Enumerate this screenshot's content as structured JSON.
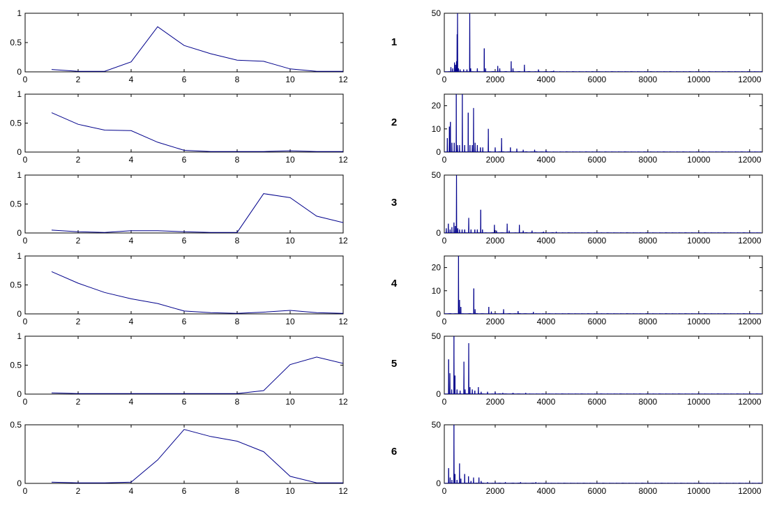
{
  "colors": {
    "line": "#00008b",
    "axis": "#000000",
    "background": "#ffffff"
  },
  "row_labels": [
    "1",
    "2",
    "3",
    "4",
    "5",
    "6"
  ],
  "chart_data": [
    {
      "type": "line",
      "row": "1",
      "xlim": [
        0,
        12
      ],
      "ylim": [
        0,
        1
      ],
      "xticks": [
        "0",
        "2",
        "4",
        "6",
        "8",
        "10",
        "12"
      ],
      "yticks": [
        "0",
        "0.5",
        "1"
      ],
      "x": [
        1,
        2,
        3,
        4,
        5,
        6,
        7,
        8,
        9,
        10,
        11,
        12
      ],
      "values": [
        0.04,
        0.01,
        0.01,
        0.17,
        0.77,
        0.45,
        0.31,
        0.2,
        0.18,
        0.05,
        0.01,
        0.01
      ]
    },
    {
      "type": "line",
      "row": "1",
      "xlim": [
        0,
        12500
      ],
      "ylim": [
        0,
        50
      ],
      "xticks": [
        "0",
        "2000",
        "4000",
        "6000",
        "8000",
        "10000",
        "12000"
      ],
      "yticks": [
        "0",
        "50"
      ],
      "peaks": [
        [
          260,
          4
        ],
        [
          330,
          3
        ],
        [
          400,
          8
        ],
        [
          440,
          6
        ],
        [
          480,
          9
        ],
        [
          505,
          32
        ],
        [
          520,
          50
        ],
        [
          560,
          3
        ],
        [
          620,
          2
        ],
        [
          760,
          2
        ],
        [
          890,
          2
        ],
        [
          1000,
          50
        ],
        [
          1040,
          3
        ],
        [
          1300,
          3
        ],
        [
          1570,
          20
        ],
        [
          1620,
          3
        ],
        [
          2100,
          5
        ],
        [
          2180,
          3
        ],
        [
          2630,
          9
        ],
        [
          2700,
          3
        ],
        [
          3150,
          6
        ],
        [
          3700,
          2
        ],
        [
          4300,
          1
        ]
      ]
    },
    {
      "type": "line",
      "row": "2",
      "xlim": [
        0,
        12
      ],
      "ylim": [
        0,
        1
      ],
      "xticks": [
        "0",
        "2",
        "4",
        "6",
        "8",
        "10",
        "12"
      ],
      "yticks": [
        "0",
        "0.5",
        "1"
      ],
      "x": [
        1,
        2,
        3,
        4,
        5,
        6,
        7,
        8,
        9,
        10,
        11,
        12
      ],
      "values": [
        0.68,
        0.48,
        0.38,
        0.37,
        0.17,
        0.03,
        0.01,
        0.01,
        0.01,
        0.02,
        0.01,
        0.01
      ]
    },
    {
      "type": "line",
      "row": "2",
      "xlim": [
        0,
        12500
      ],
      "ylim": [
        0,
        25
      ],
      "xticks": [
        "0",
        "2000",
        "4000",
        "6000",
        "8000",
        "10000",
        "12000"
      ],
      "yticks": [
        "0",
        "10",
        "20"
      ],
      "peaks": [
        [
          120,
          6
        ],
        [
          200,
          11
        ],
        [
          240,
          13
        ],
        [
          300,
          4
        ],
        [
          390,
          4
        ],
        [
          470,
          25
        ],
        [
          520,
          3
        ],
        [
          600,
          3
        ],
        [
          710,
          25
        ],
        [
          800,
          3
        ],
        [
          940,
          17
        ],
        [
          1010,
          3
        ],
        [
          1100,
          3
        ],
        [
          1150,
          19
        ],
        [
          1210,
          4
        ],
        [
          1300,
          3
        ],
        [
          1420,
          2
        ],
        [
          1510,
          2
        ],
        [
          1730,
          10
        ],
        [
          2000,
          2
        ],
        [
          2250,
          6
        ],
        [
          2600,
          2
        ],
        [
          2850,
          1.5
        ],
        [
          3100,
          1
        ],
        [
          3550,
          1
        ],
        [
          4000,
          0.8
        ]
      ]
    },
    {
      "type": "line",
      "row": "3",
      "xlim": [
        0,
        12
      ],
      "ylim": [
        0,
        1
      ],
      "xticks": [
        "0",
        "2",
        "4",
        "6",
        "8",
        "10",
        "12"
      ],
      "yticks": [
        "0",
        "0.5",
        "1"
      ],
      "x": [
        1,
        2,
        3,
        4,
        5,
        6,
        7,
        8,
        9,
        10,
        11,
        12
      ],
      "values": [
        0.05,
        0.02,
        0.01,
        0.04,
        0.04,
        0.02,
        0.01,
        0.01,
        0.68,
        0.61,
        0.29,
        0.18
      ]
    },
    {
      "type": "line",
      "row": "3",
      "xlim": [
        0,
        12500
      ],
      "ylim": [
        0,
        50
      ],
      "xticks": [
        "0",
        "2000",
        "4000",
        "6000",
        "8000",
        "10000",
        "12000"
      ],
      "yticks": [
        "0",
        "50"
      ],
      "peaks": [
        [
          80,
          4
        ],
        [
          160,
          8
        ],
        [
          230,
          3
        ],
        [
          300,
          5
        ],
        [
          380,
          9
        ],
        [
          430,
          6
        ],
        [
          480,
          50
        ],
        [
          530,
          4
        ],
        [
          600,
          3
        ],
        [
          700,
          3
        ],
        [
          800,
          3
        ],
        [
          960,
          13
        ],
        [
          1050,
          3
        ],
        [
          1200,
          3
        ],
        [
          1300,
          3
        ],
        [
          1430,
          20
        ],
        [
          1500,
          3
        ],
        [
          1970,
          7
        ],
        [
          2050,
          2
        ],
        [
          2470,
          8
        ],
        [
          2550,
          2
        ],
        [
          2950,
          7
        ],
        [
          3100,
          2
        ],
        [
          3450,
          2
        ],
        [
          3900,
          1
        ],
        [
          4400,
          1
        ]
      ]
    },
    {
      "type": "line",
      "row": "4",
      "xlim": [
        0,
        12
      ],
      "ylim": [
        0,
        1
      ],
      "xticks": [
        "0",
        "2",
        "4",
        "6",
        "8",
        "10",
        "12"
      ],
      "yticks": [
        "0",
        "0.5",
        "1"
      ],
      "x": [
        1,
        2,
        3,
        4,
        5,
        6,
        7,
        8,
        9,
        10,
        11,
        12
      ],
      "values": [
        0.73,
        0.53,
        0.37,
        0.26,
        0.18,
        0.05,
        0.02,
        0.01,
        0.03,
        0.06,
        0.02,
        0.01
      ]
    },
    {
      "type": "line",
      "row": "4",
      "xlim": [
        0,
        12500
      ],
      "ylim": [
        0,
        25
      ],
      "xticks": [
        "0",
        "2000",
        "4000",
        "6000",
        "8000",
        "10000",
        "12000"
      ],
      "yticks": [
        "0",
        "10",
        "20"
      ],
      "peaks": [
        [
          560,
          25
        ],
        [
          600,
          6
        ],
        [
          650,
          3
        ],
        [
          1160,
          11
        ],
        [
          1210,
          2
        ],
        [
          1750,
          3
        ],
        [
          1850,
          1
        ],
        [
          2330,
          2
        ],
        [
          2900,
          1.2
        ],
        [
          3500,
          0.8
        ]
      ]
    },
    {
      "type": "line",
      "row": "5",
      "xlim": [
        0,
        12
      ],
      "ylim": [
        0,
        1
      ],
      "xticks": [
        "0",
        "2",
        "4",
        "6",
        "8",
        "10",
        "12"
      ],
      "yticks": [
        "0",
        "0.5",
        "1"
      ],
      "x": [
        1,
        2,
        3,
        4,
        5,
        6,
        7,
        8,
        9,
        10,
        11,
        12
      ],
      "values": [
        0.02,
        0.01,
        0.01,
        0.01,
        0.01,
        0.01,
        0.01,
        0.01,
        0.06,
        0.51,
        0.64,
        0.53
      ]
    },
    {
      "type": "line",
      "row": "5",
      "xlim": [
        0,
        12500
      ],
      "ylim": [
        0,
        50
      ],
      "xticks": [
        "0",
        "2000",
        "4000",
        "6000",
        "8000",
        "10000",
        "12000"
      ],
      "yticks": [
        "0",
        "50"
      ],
      "peaks": [
        [
          170,
          30
        ],
        [
          220,
          18
        ],
        [
          290,
          4
        ],
        [
          380,
          50
        ],
        [
          420,
          16
        ],
        [
          500,
          4
        ],
        [
          620,
          3
        ],
        [
          770,
          28
        ],
        [
          820,
          4
        ],
        [
          960,
          44
        ],
        [
          1010,
          6
        ],
        [
          1100,
          4
        ],
        [
          1200,
          3
        ],
        [
          1340,
          6
        ],
        [
          1450,
          2
        ],
        [
          1700,
          2
        ],
        [
          2000,
          2
        ],
        [
          2300,
          1
        ],
        [
          2700,
          1
        ],
        [
          3200,
          1
        ]
      ]
    },
    {
      "type": "line",
      "row": "6",
      "xlim": [
        0,
        12
      ],
      "ylim": [
        0,
        0.5
      ],
      "xticks": [
        "0",
        "2",
        "4",
        "6",
        "8",
        "10",
        "12"
      ],
      "yticks": [
        "0",
        "0.5"
      ],
      "x": [
        1,
        2,
        3,
        4,
        5,
        6,
        7,
        8,
        9,
        10,
        11,
        12
      ],
      "values": [
        0.01,
        0.005,
        0.005,
        0.01,
        0.2,
        0.46,
        0.4,
        0.36,
        0.27,
        0.06,
        0.005,
        0.005
      ]
    },
    {
      "type": "line",
      "row": "6",
      "xlim": [
        0,
        12500
      ],
      "ylim": [
        0,
        50
      ],
      "xticks": [
        "0",
        "2000",
        "4000",
        "6000",
        "8000",
        "10000",
        "12000"
      ],
      "yticks": [
        "0",
        "50"
      ],
      "peaks": [
        [
          170,
          13
        ],
        [
          230,
          5
        ],
        [
          300,
          3
        ],
        [
          380,
          50
        ],
        [
          420,
          8
        ],
        [
          500,
          3
        ],
        [
          600,
          17
        ],
        [
          650,
          4
        ],
        [
          800,
          8
        ],
        [
          950,
          6
        ],
        [
          1050,
          2
        ],
        [
          1150,
          5
        ],
        [
          1360,
          5
        ],
        [
          1450,
          2
        ],
        [
          1700,
          1
        ],
        [
          2000,
          1
        ],
        [
          2400,
          1
        ],
        [
          3000,
          1
        ],
        [
          3600,
          1
        ]
      ]
    }
  ]
}
